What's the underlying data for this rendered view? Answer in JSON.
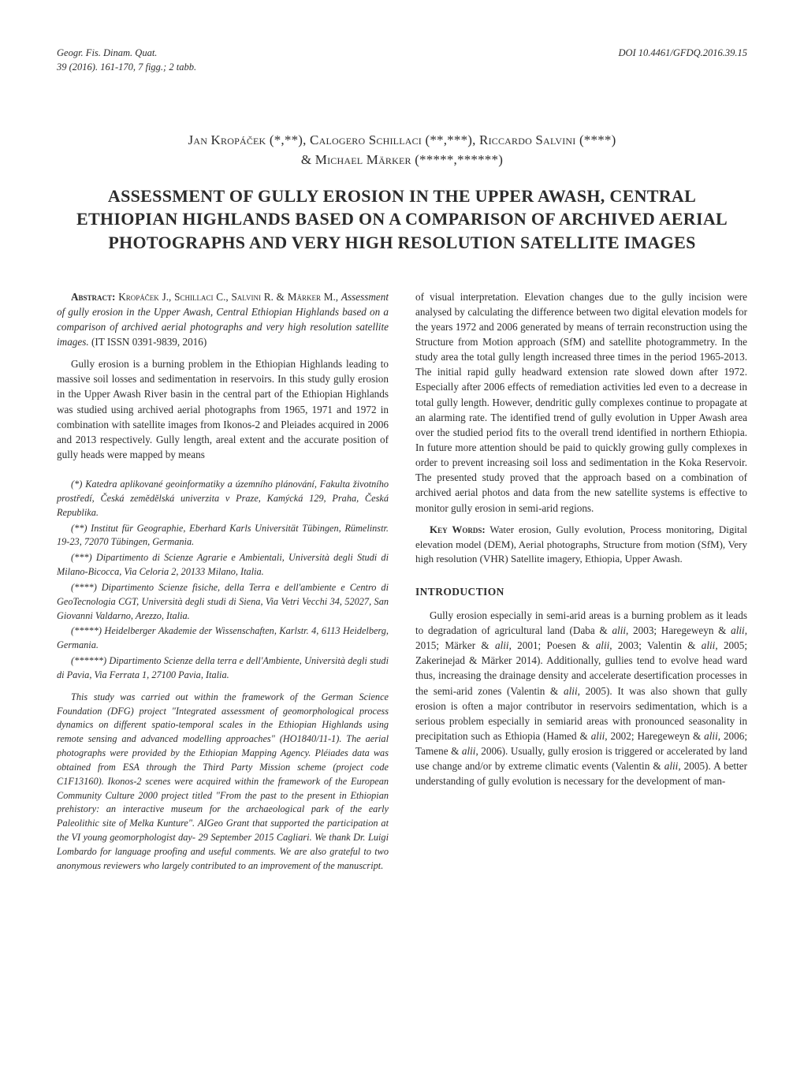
{
  "meta": {
    "journal": "Geogr. Fis. Dinam. Quat.",
    "issue": "39 (2016). 161-170, 7 figg.; 2 tabb.",
    "doi": "DOI 10.4461/GFDQ.2016.39.15"
  },
  "authors_line1": "Jan Kropáček (*,**), Calogero Schillaci (**,***), Riccardo Salvini (****)",
  "authors_line2": "& Michael Märker (*****,******)",
  "title": "ASSESSMENT OF GULLY EROSION IN THE UPPER AWASH, CENTRAL ETHIOPIAN HIGHLANDS BASED ON A COMPARISON OF ARCHIVED AERIAL PHOTOGRAPHS AND VERY HIGH RESOLUTION SATELLITE IMAGES",
  "abstract": {
    "label": "Abstract:",
    "citation_authors": "Kropáček J., Schillaci C., Salvini R. & Märker M.,",
    "citation_title": "Assessment of gully erosion in the Upper Awash, Central Ethiopian Highlands based on a comparison of archived aerial photographs and very high resolution satellite images.",
    "citation_tail": " (IT ISSN 0391-9839, 2016)",
    "p1": "Gully erosion is a burning problem in the Ethiopian Highlands leading to massive soil losses and sedimentation in reservoirs. In this study gully erosion in the Upper Awash River basin in the central part of the Ethiopian Highlands was studied using archived aerial photographs from 1965, 1971 and 1972 in combination with satellite images from Ikonos-2 and Pleiades acquired in 2006 and 2013 respectively. Gully length, areal extent and the accurate position of gully heads were mapped by means",
    "p2": "of visual interpretation. Elevation changes due to the gully incision were analysed by calculating the difference between two digital elevation models for the years 1972 and 2006 generated by means of terrain reconstruction using the Structure from Motion approach (SfM) and satellite photogrammetry. In the study area the total gully length increased three times in the period 1965-2013. The initial rapid gully headward extension rate slowed down after 1972. Especially after 2006 effects of remediation activities led even to a decrease in total gully length. However, dendritic gully complexes continue to propagate at an alarming rate. The identified trend of gully evolution in Upper Awash area over the studied period fits to the overall trend identified in northern Ethiopia. In future more attention should be paid to quickly growing gully complexes in order to prevent increasing soil loss and sedimentation in the Koka Reservoir. The presented study proved that the approach based on a combination of archived aerial photos and data from the new satellite systems is effective to monitor gully erosion in semi-arid regions."
  },
  "affiliations": [
    "(*) Katedra aplikované geoinformatiky a územního plánování, Fakulta životního prostředí, Česká zemědělská univerzita v Praze, Kamýcká 129, Praha, Česká Republika.",
    "(**) Institut für Geographie, Eberhard Karls Universität Tübingen, Rümelinstr. 19-23, 72070 Tübingen, Germania.",
    "(***) Dipartimento di Scienze Agrarie e Ambientali, Università degli Studi di Milano-Bicocca, Via Celoria 2, 20133 Milano, Italia.",
    "(****) Dipartimento Scienze fisiche, della Terra e dell'ambiente e Centro di GeoTecnologia CGT, Università degli studi di Siena, Via Vetri Vecchi 34, 52027, San Giovanni Valdarno, Arezzo, Italia.",
    "(*****) Heidelberger Akademie der Wissenschaften, Karlstr. 4, 6113 Heidelberg, Germania.",
    "(******) Dipartimento Scienze della terra e dell'Ambiente, Università degli studi di Pavia, Via Ferrata 1, 27100 Pavia, Italia."
  ],
  "acknowledgment": "This study was carried out within the framework of the German Science Foundation (DFG) project \"Integrated assessment of geomorphological process dynamics on different spatio-temporal scales in the Ethiopian Highlands using remote sensing and advanced modelling approaches\" (HO1840/11-1). The aerial photographs were provided by the Ethiopian Mapping Agency. Pléiades data was obtained from ESA through the Third Party Mission scheme (project code C1F13160). Ikonos-2 scenes were acquired within the framework of the European Community Culture 2000 project titled \"From the past to the present in Ethiopian prehistory: an interactive museum for the archaeological park of the early Paleolithic site of Melka Kunture\". AIGeo Grant that supported the participation at the VI young geomorphologist day- 29 September 2015 Cagliari. We thank Dr. Luigi Lombardo for language proofing and useful comments. We are also grateful to two anonymous reviewers who largely contributed to an improvement of the manuscript.",
  "keywords": {
    "label": "Key Words:",
    "text": " Water erosion, Gully evolution, Process monitoring, Digital elevation model (DEM), Aerial photographs, Structure from motion (SfM), Very high resolution (VHR) Satellite imagery, Ethiopia, Upper Awash."
  },
  "section": {
    "heading": "INTRODUCTION",
    "p1_a": "Gully erosion especially in semi-arid areas is a burning problem as it leads to degradation of agricultural land (Daba & ",
    "p1_b": ", 2003; Haregeweyn & ",
    "p1_c": ", 2015; Märker & ",
    "p1_d": ", 2001; Poesen & ",
    "p1_e": ", 2003; Valentin & ",
    "p1_f": ", 2005; Zakerinejad & Märker 2014). Additionally, gullies tend to evolve head ward thus, increasing the drainage density and accelerate desertification processes in the semi-arid zones (Valentin & ",
    "p1_g": ", 2005). It was also shown that gully erosion is often a major contributor in reservoirs sedimentation, which is a serious problem especially in semiarid areas with pronounced seasonality in precipitation such as Ethiopia (Hamed & ",
    "p1_h": ", 2002; Haregeweyn & ",
    "p1_i": ", 2006; Tamene & ",
    "p1_j": ", 2006). Usually, gully erosion is triggered or accelerated by land use change and/or by extreme climatic events (Valentin & ",
    "p1_k": ", 2005). A better understanding of gully evolution is necessary for the development of man-",
    "alii": "alii"
  }
}
